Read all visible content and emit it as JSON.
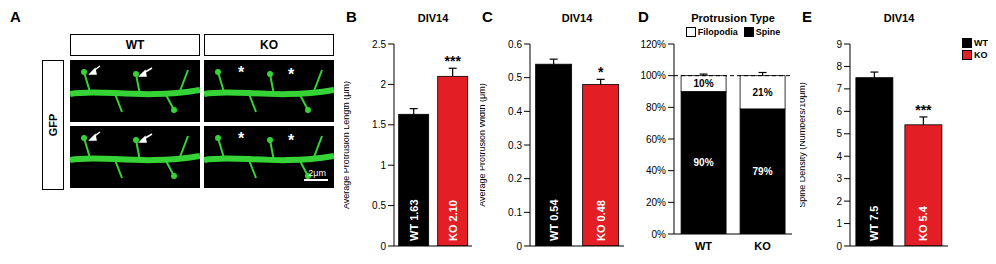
{
  "panel_A": {
    "panel_label": "A",
    "columns": [
      "WT",
      "KO"
    ],
    "row_label": "GFP",
    "scale_bar": "2μm",
    "marker": "*"
  },
  "chart_data": [
    {
      "type": "bar",
      "panel_label": "B",
      "title": "DIV14",
      "y_label": "Average Protrusion Length (μm)",
      "categories": [
        "WT",
        "KO"
      ],
      "values": [
        1.63,
        2.1
      ],
      "value_labels": [
        "WT 1.63",
        "KO 2.10"
      ],
      "errors": [
        0.07,
        0.1
      ],
      "colors": [
        "#000000",
        "#e31e24"
      ],
      "ylim": [
        0,
        2.5
      ],
      "yticks": [
        0,
        0.5,
        1,
        1.5,
        2,
        2.5
      ],
      "data_labels": true,
      "tick_labels": "y",
      "significance": {
        "KO": "***"
      }
    },
    {
      "type": "bar",
      "panel_label": "C",
      "title": "DIV14",
      "y_label": "Average Protrusion Width (μm)",
      "categories": [
        "WT",
        "KO"
      ],
      "values": [
        0.54,
        0.48
      ],
      "value_labels": [
        "WT 0.54",
        "KO 0.48"
      ],
      "errors": [
        0.015,
        0.015
      ],
      "colors": [
        "#000000",
        "#e31e24"
      ],
      "ylim": [
        0,
        0.6
      ],
      "yticks": [
        0,
        0.1,
        0.2,
        0.3,
        0.4,
        0.5,
        0.6
      ],
      "data_labels": true,
      "tick_labels": "y",
      "significance": {
        "KO": "*"
      }
    },
    {
      "type": "bar",
      "panel_label": "D",
      "title": "Protrusion Type",
      "stacked": true,
      "categories": [
        "WT",
        "KO"
      ],
      "series": [
        {
          "name": "Spine",
          "color": "#000000",
          "values": [
            90,
            79
          ],
          "value_labels": [
            "90%",
            "79%"
          ]
        },
        {
          "name": "Filopodia",
          "color": "#ffffff",
          "values": [
            10,
            21
          ],
          "value_labels": [
            "10%",
            "21%"
          ],
          "errors": [
            1,
            2
          ]
        }
      ],
      "ylim": [
        0,
        120
      ],
      "yticks": [
        {
          "value": 0,
          "label": "0%"
        },
        {
          "value": 20,
          "label": "20%"
        },
        {
          "value": 40,
          "label": "40%"
        },
        {
          "value": 60,
          "label": "60%"
        },
        {
          "value": 80,
          "label": "80%"
        },
        {
          "value": 100,
          "label": "100%"
        },
        {
          "value": 120,
          "label": "120%"
        }
      ],
      "reference_line": 100,
      "legend": "top",
      "data_labels": true
    },
    {
      "type": "bar",
      "panel_label": "E",
      "title": "DIV14",
      "y_label": "Spine Density (Numbers/10μm)",
      "categories": [
        "WT",
        "KO"
      ],
      "values": [
        7.5,
        5.4
      ],
      "value_labels": [
        "WT 7.5",
        "KO 5.4"
      ],
      "errors": [
        0.25,
        0.35
      ],
      "colors": [
        "#000000",
        "#e31e24"
      ],
      "ylim": [
        0,
        9
      ],
      "yticks": [
        0,
        1,
        2,
        3,
        4,
        5,
        6,
        7,
        8,
        9
      ],
      "data_labels": true,
      "tick_labels": "y",
      "legend": "top-right",
      "significance": {
        "KO": "***"
      }
    }
  ]
}
